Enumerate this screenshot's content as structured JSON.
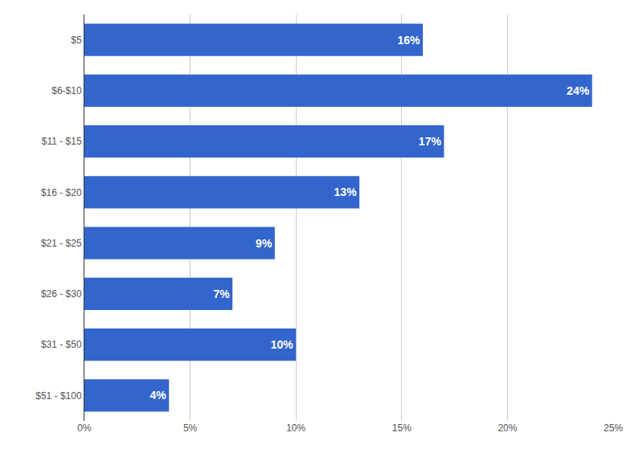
{
  "chart_data": {
    "type": "bar",
    "orientation": "horizontal",
    "categories": [
      "$5",
      "$6-$10",
      "$11 - $15",
      "$16 - $20",
      "$21 - $25",
      "$26 - $30",
      "$31 - $50",
      "$51 - $100"
    ],
    "values": [
      16,
      24,
      17,
      13,
      9,
      7,
      10,
      4
    ],
    "value_labels": [
      "16%",
      "24%",
      "17%",
      "13%",
      "9%",
      "7%",
      "10%",
      "4%"
    ],
    "color": "#3366cc",
    "xlim": [
      0,
      25
    ],
    "xticks": [
      {
        "value": 0,
        "label": "0%"
      },
      {
        "value": 5,
        "label": "5%"
      },
      {
        "value": 10,
        "label": "10%"
      },
      {
        "value": 15,
        "label": "15%"
      },
      {
        "value": 20,
        "label": "20%"
      },
      {
        "value": 25,
        "label": "25%"
      }
    ],
    "grid": true,
    "data_labels": true
  }
}
